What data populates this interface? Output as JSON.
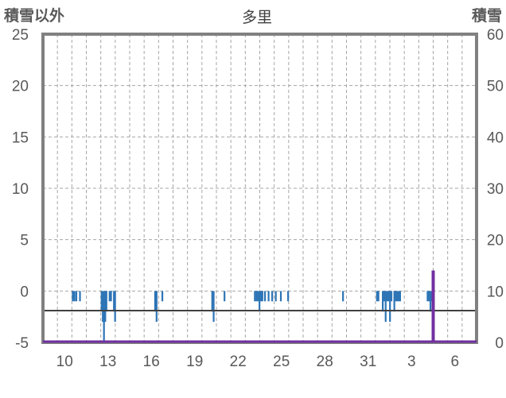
{
  "chart_data": {
    "type": "bar",
    "title": "多里",
    "left_axis_label": "積雪以外",
    "right_axis_label": "積雪",
    "left_ylim": [
      -5,
      25
    ],
    "left_ticks": [
      "-5",
      "0",
      "5",
      "10",
      "15",
      "20",
      "25"
    ],
    "right_ylim": [
      0,
      60
    ],
    "right_ticks": [
      "0",
      "10",
      "20",
      "30",
      "40",
      "50",
      "60"
    ],
    "x_ticks": [
      "10",
      "13",
      "16",
      "19",
      "22",
      "25",
      "28",
      "31",
      "3",
      "6"
    ],
    "grid": true,
    "series": [
      {
        "axis": "left",
        "color": "#2e75b6",
        "points": [
          {
            "d": 2.0,
            "v": -1
          },
          {
            "d": 2.12,
            "v": -1
          },
          {
            "d": 2.25,
            "v": -1
          },
          {
            "d": 2.5,
            "v": -1
          },
          {
            "d": 4.0,
            "v": -2
          },
          {
            "d": 4.08,
            "v": -3
          },
          {
            "d": 4.16,
            "v": -5
          },
          {
            "d": 4.25,
            "v": -3
          },
          {
            "d": 4.33,
            "v": -2
          },
          {
            "d": 4.55,
            "v": -1
          },
          {
            "d": 4.65,
            "v": -1
          },
          {
            "d": 4.85,
            "v": -2
          },
          {
            "d": 4.93,
            "v": -3
          },
          {
            "d": 7.7,
            "v": -2
          },
          {
            "d": 7.8,
            "v": -3
          },
          {
            "d": 8.2,
            "v": -1
          },
          {
            "d": 11.65,
            "v": -2
          },
          {
            "d": 11.75,
            "v": -3
          },
          {
            "d": 12.5,
            "v": -1
          },
          {
            "d": 14.6,
            "v": -1
          },
          {
            "d": 14.72,
            "v": -1
          },
          {
            "d": 14.82,
            "v": -1
          },
          {
            "d": 14.92,
            "v": -2
          },
          {
            "d": 15.02,
            "v": -1
          },
          {
            "d": 15.12,
            "v": -1
          },
          {
            "d": 15.3,
            "v": -1
          },
          {
            "d": 15.55,
            "v": -1
          },
          {
            "d": 15.8,
            "v": -1
          },
          {
            "d": 16.05,
            "v": -1
          },
          {
            "d": 16.4,
            "v": -1
          },
          {
            "d": 16.9,
            "v": -1
          },
          {
            "d": 20.7,
            "v": -1
          },
          {
            "d": 23.05,
            "v": -1
          },
          {
            "d": 23.15,
            "v": -1
          },
          {
            "d": 23.45,
            "v": -2
          },
          {
            "d": 23.55,
            "v": -1
          },
          {
            "d": 23.65,
            "v": -3
          },
          {
            "d": 23.75,
            "v": -1
          },
          {
            "d": 23.85,
            "v": -1
          },
          {
            "d": 23.95,
            "v": -3
          },
          {
            "d": 24.05,
            "v": -1
          },
          {
            "d": 24.25,
            "v": -2
          },
          {
            "d": 24.35,
            "v": -1
          },
          {
            "d": 24.45,
            "v": -1
          },
          {
            "d": 24.55,
            "v": -1
          },
          {
            "d": 24.65,
            "v": -1
          },
          {
            "d": 26.55,
            "v": -1
          },
          {
            "d": 26.65,
            "v": -1
          },
          {
            "d": 26.75,
            "v": -2
          },
          {
            "d": 26.85,
            "v": -1
          }
        ]
      },
      {
        "axis": "right",
        "color": "#7030a0",
        "points": [
          {
            "d": 27.0,
            "v": 14
          }
        ]
      }
    ]
  }
}
